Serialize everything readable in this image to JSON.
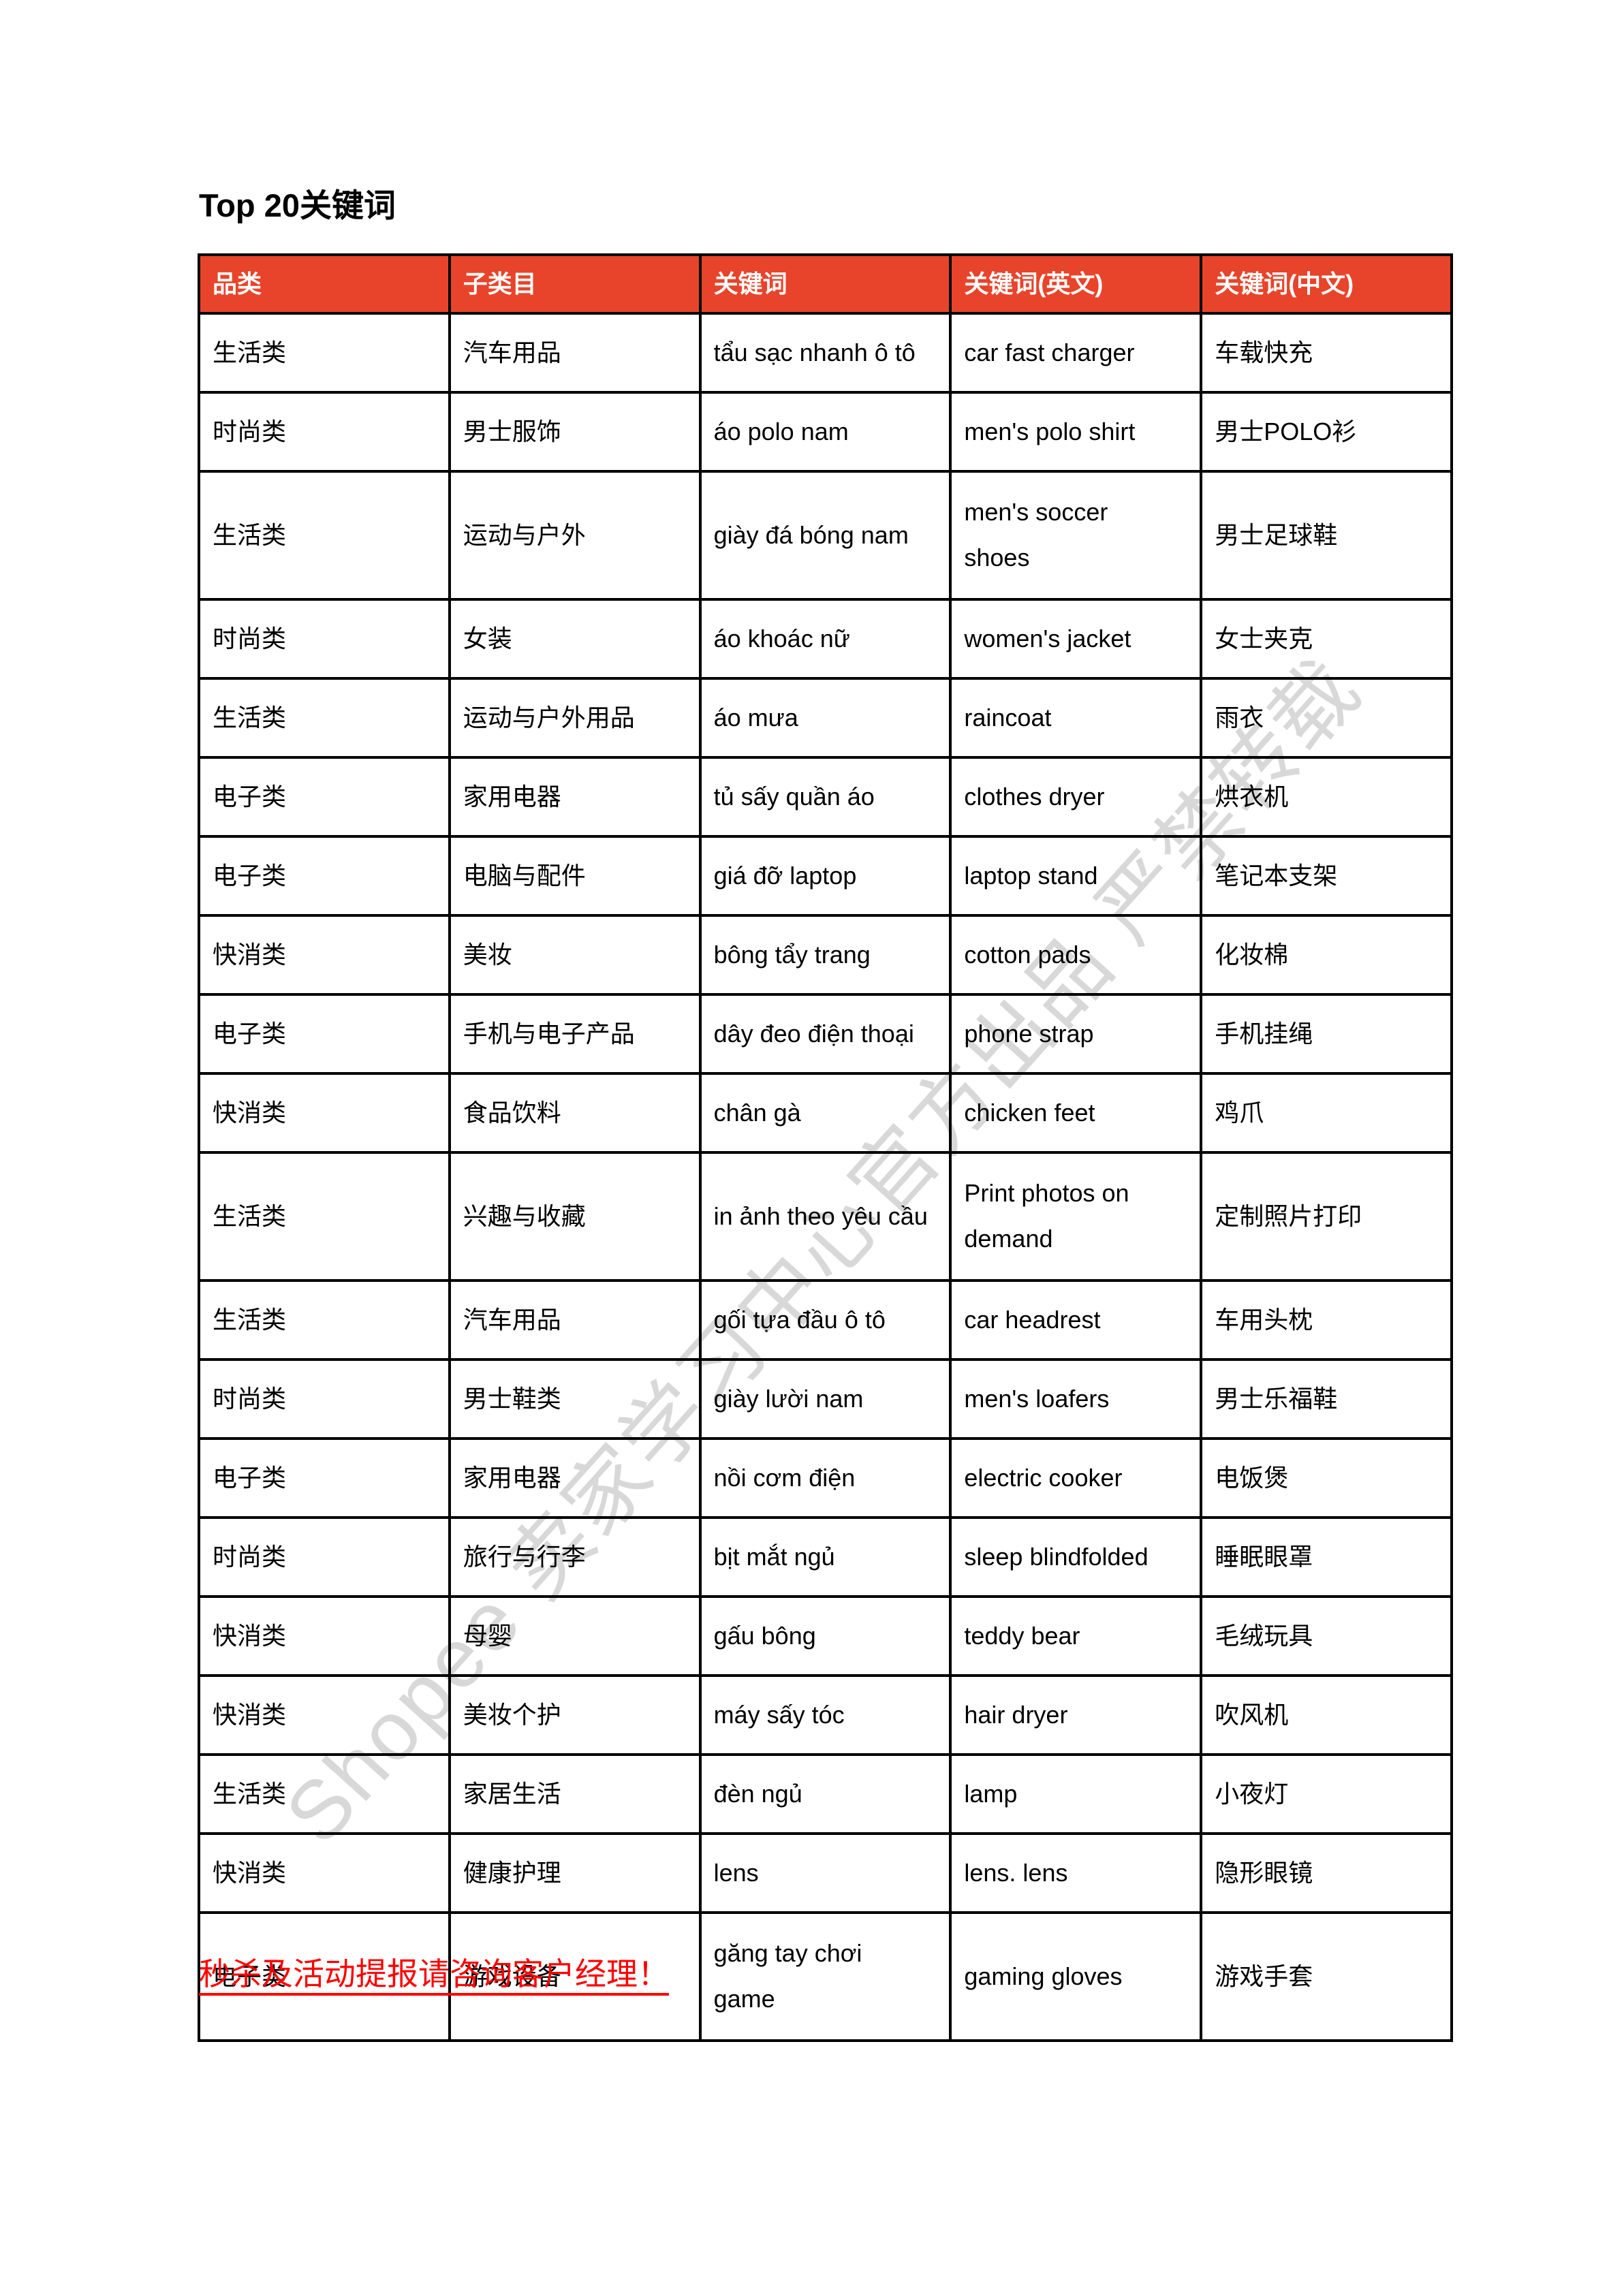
{
  "page": {
    "title": "Top 20关键词",
    "watermark": "Shopee 卖家学习中心官方出品 严禁转载",
    "footer_note": "秒杀及活动提报请咨询客户经理！"
  },
  "colors": {
    "header_bg": "#E8442B",
    "header_text": "#FFFFFF",
    "border": "#000000",
    "footer_text": "#FF0000",
    "watermark": "#D8D8D8"
  },
  "table": {
    "headers": [
      "品类",
      "子类目",
      "关键词",
      "关键词(英文)",
      "关键词(中文)"
    ],
    "rows": [
      [
        "生活类",
        "汽车用品",
        "tẩu sạc nhanh ô tô",
        "car fast charger",
        "车载快充"
      ],
      [
        "时尚类",
        "男士服饰",
        "áo polo nam",
        "men's polo shirt",
        "男士POLO衫"
      ],
      [
        "生活类",
        "运动与户外",
        "giày đá bóng nam",
        "men's soccer\nshoes",
        "男士足球鞋"
      ],
      [
        "时尚类",
        "女装",
        "áo khoác nữ",
        "women's jacket",
        "女士夹克"
      ],
      [
        "生活类",
        "运动与户外用品",
        "áo mưa",
        "raincoat",
        "雨衣"
      ],
      [
        "电子类",
        "家用电器",
        "tủ sấy quần áo",
        "clothes dryer",
        "烘衣机"
      ],
      [
        "电子类",
        "电脑与配件",
        "giá đỡ laptop",
        "laptop stand",
        "笔记本支架"
      ],
      [
        "快消类",
        "美妆",
        "bông tẩy trang",
        "cotton pads",
        "化妆棉"
      ],
      [
        "电子类",
        "手机与电子产品",
        "dây đeo điện thoại",
        "phone strap",
        "手机挂绳"
      ],
      [
        "快消类",
        "食品饮料",
        "chân gà",
        "chicken feet",
        "鸡爪"
      ],
      [
        "生活类",
        "兴趣与收藏",
        "in ảnh theo yêu cầu",
        "Print photos on\ndemand",
        "定制照片打印"
      ],
      [
        "生活类",
        "汽车用品",
        "gối tựa đầu ô tô",
        "car headrest",
        "车用头枕"
      ],
      [
        "时尚类",
        "男士鞋类",
        "giày lười nam",
        "men's loafers",
        "男士乐福鞋"
      ],
      [
        "电子类",
        "家用电器",
        "nồi cơm điện",
        "electric cooker",
        "电饭煲"
      ],
      [
        "时尚类",
        "旅行与行李",
        "bịt mắt ngủ",
        "sleep blindfolded",
        "睡眠眼罩"
      ],
      [
        "快消类",
        "母婴",
        "gấu bông",
        "teddy bear",
        "毛绒玩具"
      ],
      [
        "快消类",
        "美妆个护",
        "máy sấy tóc",
        "hair dryer",
        "吹风机"
      ],
      [
        "生活类",
        "家居生活",
        "đèn ngủ",
        "lamp",
        "小夜灯"
      ],
      [
        "快消类",
        "健康护理",
        "lens",
        "lens. lens",
        "隐形眼镜"
      ],
      [
        "电子类",
        "游戏设备",
        "găng tay chơi\ngame",
        "gaming gloves",
        "游戏手套"
      ]
    ]
  }
}
